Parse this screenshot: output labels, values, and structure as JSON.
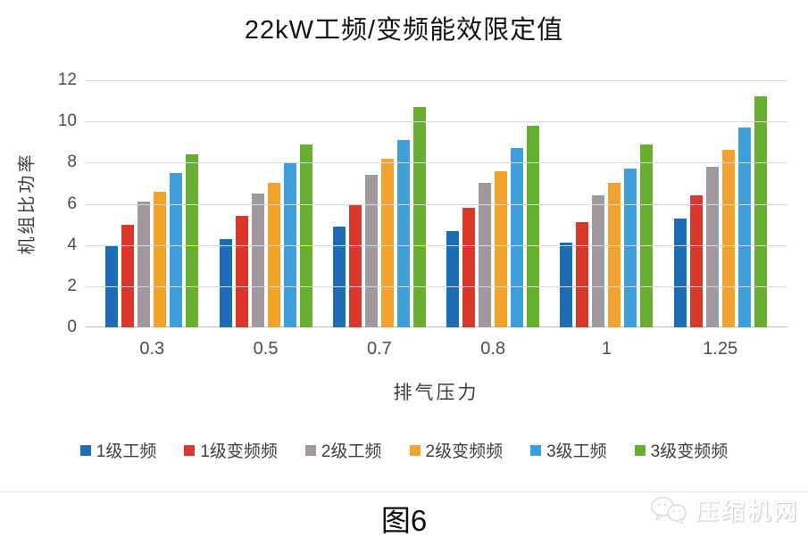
{
  "figure": {
    "caption": "图6"
  },
  "watermark": {
    "label": "压缩机网",
    "logo": "wechat-bubbles-icon"
  },
  "chart_data": {
    "type": "bar",
    "title": "22kW工频/变频能效限定值",
    "xlabel": "排气压力",
    "ylabel": "机组比功率",
    "ylim": [
      0,
      12
    ],
    "ytick_step": 2,
    "grid": true,
    "legend_position": "bottom",
    "categories": [
      "0.3",
      "0.5",
      "0.7",
      "0.8",
      "1",
      "1.25"
    ],
    "series": [
      {
        "name": "1级工频",
        "color": "#1e6cb5",
        "values": [
          4.0,
          4.3,
          4.9,
          4.7,
          4.1,
          5.3
        ]
      },
      {
        "name": "1级变频频",
        "color": "#d9382a",
        "values": [
          5.0,
          5.4,
          6.0,
          5.8,
          5.1,
          6.4
        ]
      },
      {
        "name": "2级工频",
        "color": "#a09aa0",
        "values": [
          6.1,
          6.5,
          7.4,
          7.0,
          6.4,
          7.8
        ]
      },
      {
        "name": "2级变频频",
        "color": "#f2a32e",
        "values": [
          6.6,
          7.0,
          8.2,
          7.6,
          7.0,
          8.6
        ]
      },
      {
        "name": "3级工频",
        "color": "#3f9fdb",
        "values": [
          7.5,
          8.0,
          9.1,
          8.7,
          7.7,
          9.7
        ]
      },
      {
        "name": "3级变频频",
        "color": "#67b02f",
        "values": [
          8.4,
          8.9,
          10.7,
          9.8,
          8.9,
          11.2
        ]
      }
    ],
    "colors": {
      "gridline": "#d9d9d9",
      "axis_line": "#c3c3c3",
      "tick_label": "#4d4d4d",
      "title": "#141414"
    }
  }
}
